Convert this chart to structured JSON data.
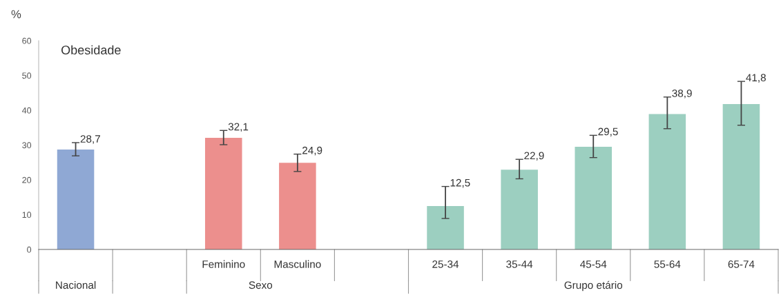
{
  "chart_data": {
    "type": "bar",
    "title": "Obesidade",
    "ylabel": "%",
    "categories": [
      null,
      null,
      "Feminino",
      "Masculino",
      null,
      "25-34",
      "35-44",
      "45-54",
      "55-64",
      "65-74"
    ],
    "values": [
      28.7,
      null,
      32.1,
      24.9,
      null,
      12.5,
      22.9,
      29.5,
      38.9,
      41.8
    ],
    "colors": [
      "#8fa8d4",
      "#ffffff",
      "#ec8f8d",
      "#ec8f8d",
      "#ffffff",
      "#9ccfc0",
      "#9ccfc0",
      "#9ccfc0",
      "#9ccfc0",
      "#9ccfc0"
    ],
    "errors": [
      [
        26.9,
        30.7
      ],
      null,
      [
        30.1,
        34.2
      ],
      [
        22.4,
        27.4
      ],
      null,
      [
        8.9,
        18.1
      ],
      [
        20.3,
        25.9
      ],
      [
        26.4,
        32.8
      ],
      [
        34.7,
        43.8
      ],
      [
        35.7,
        48.3
      ]
    ],
    "value_labels": [
      "28,7",
      null,
      "32,1",
      "24,9",
      null,
      "12,5",
      "22,9",
      "29,5",
      "38,9",
      "41,8"
    ],
    "annotations": [
      "Nacional",
      "Sexo",
      "Grupo etário"
    ],
    "ylim": [
      0,
      60
    ],
    "yticks": [
      0,
      10,
      20,
      30,
      40,
      50,
      60
    ],
    "grid": false
  }
}
